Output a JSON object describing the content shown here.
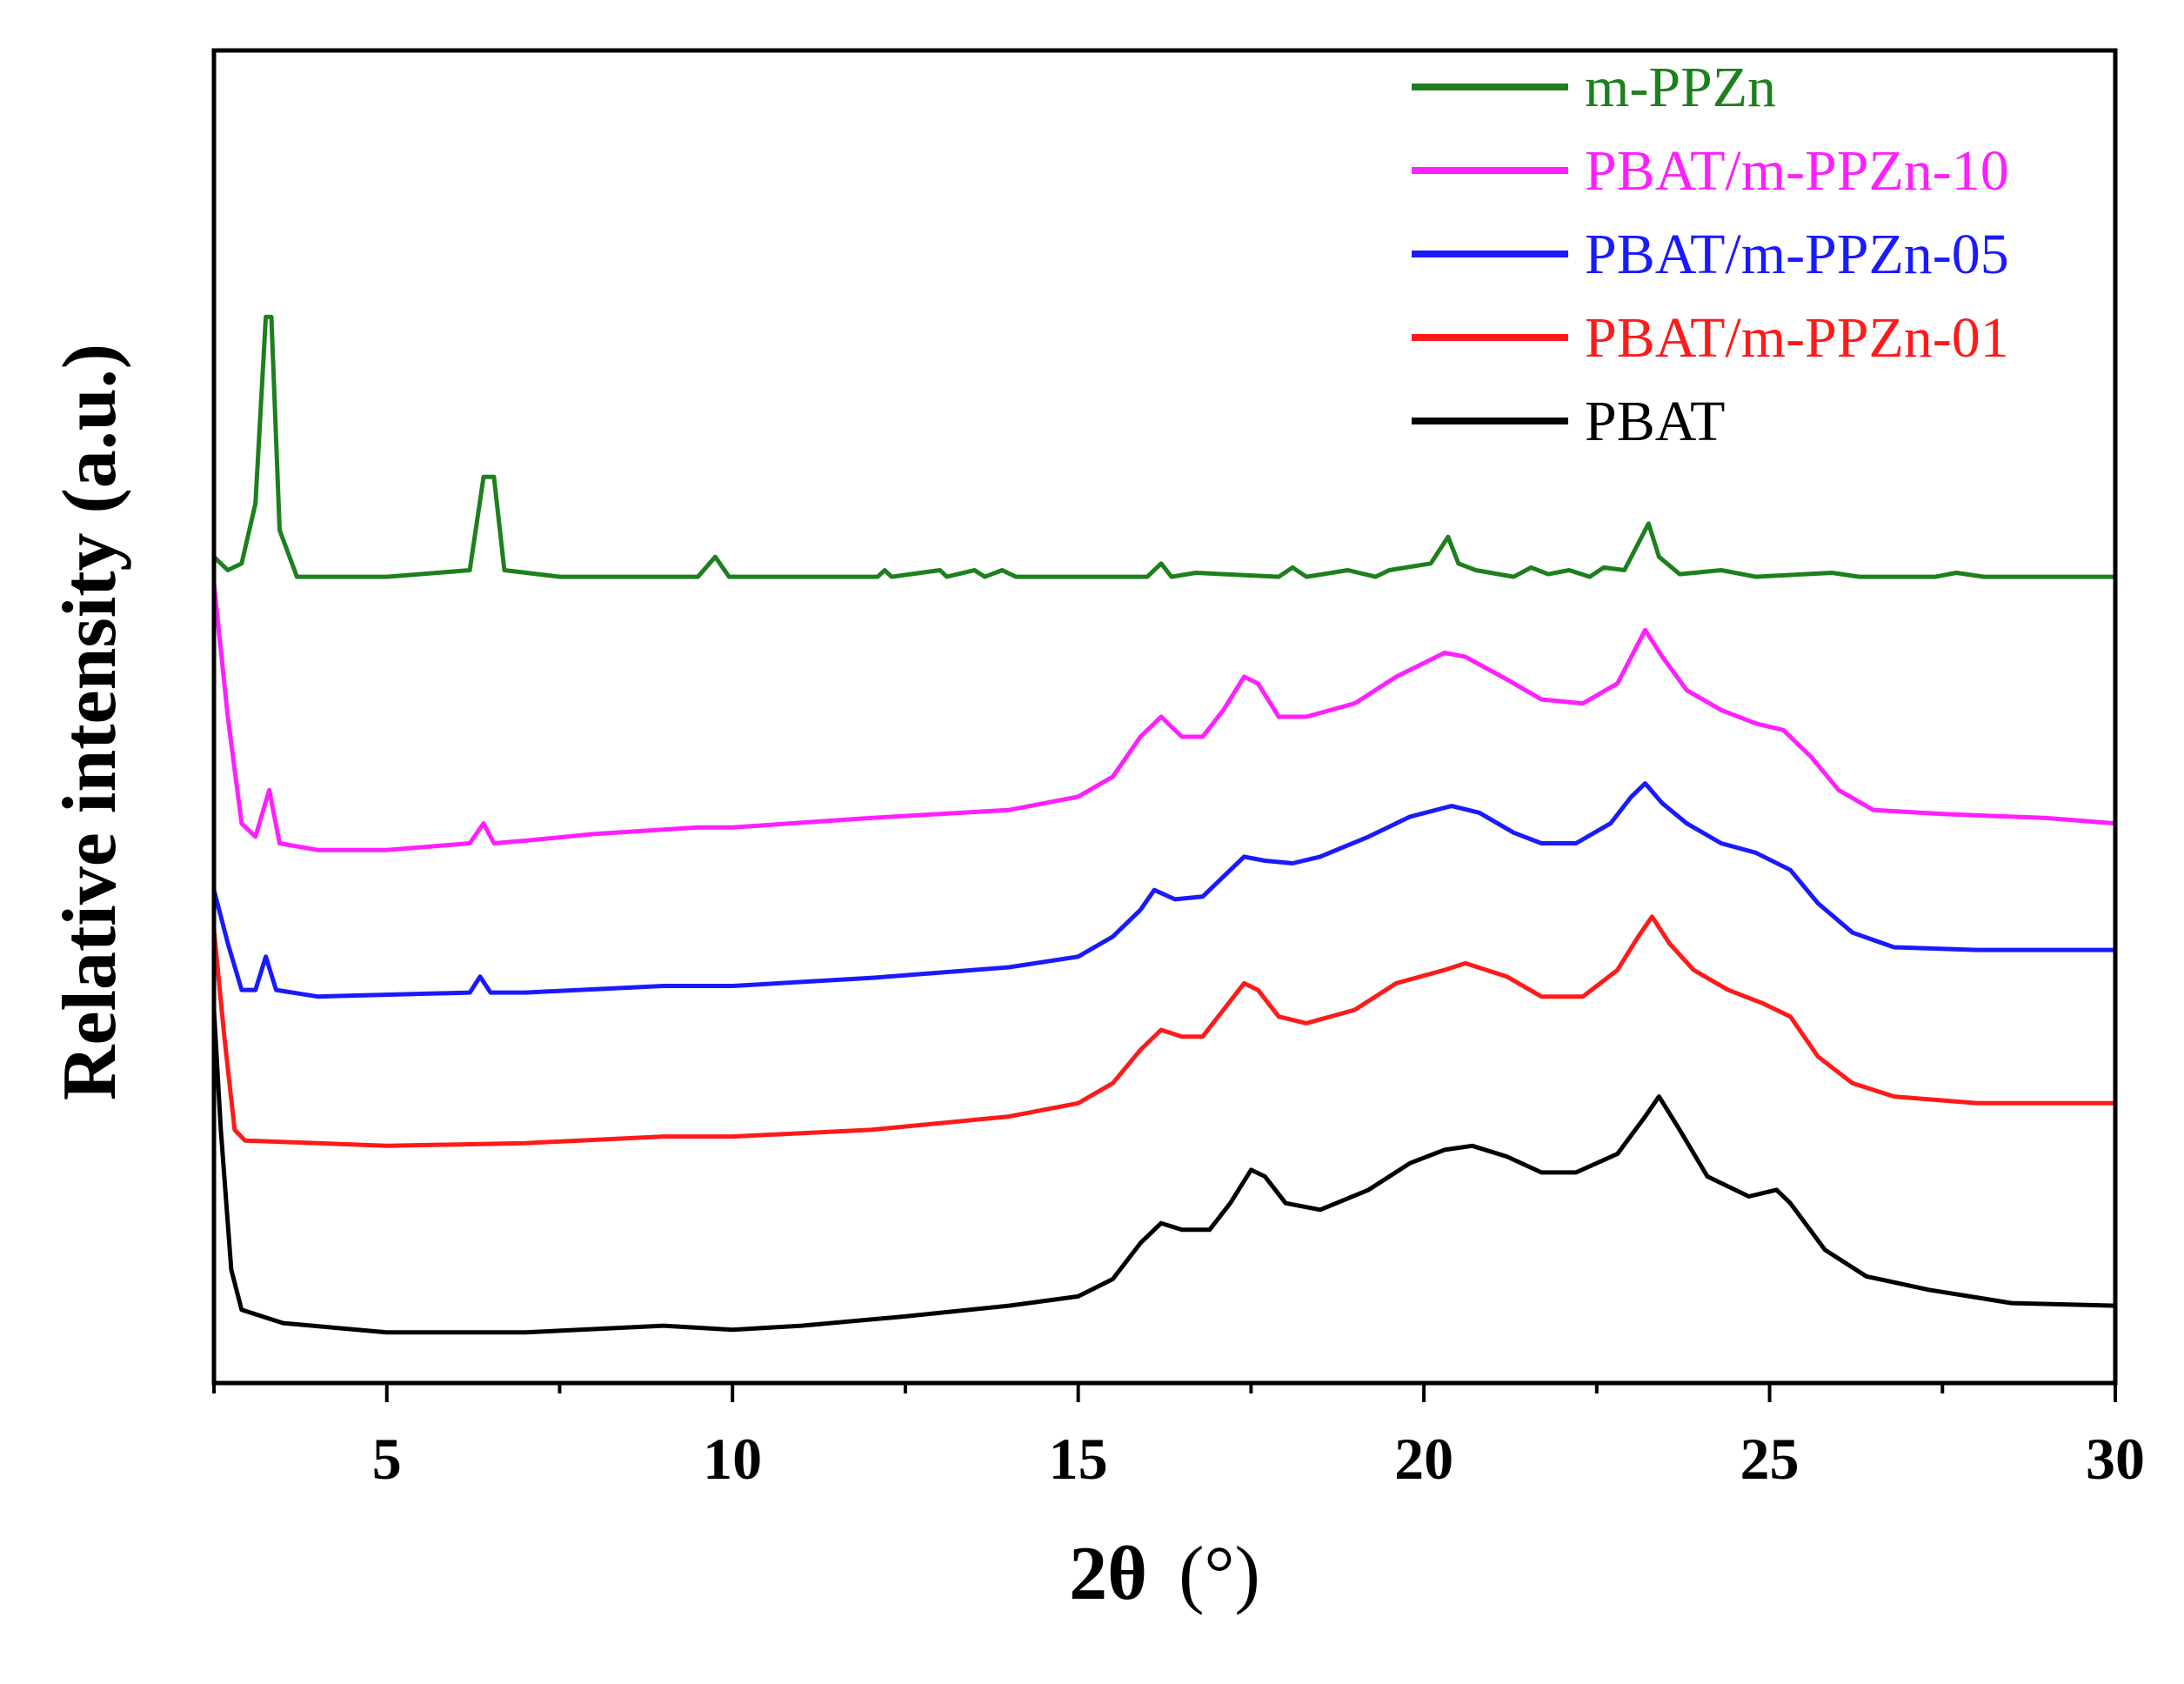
{
  "chart_data": {
    "type": "line",
    "title": "",
    "xlabel_main": "2θ",
    "xlabel_unit": "(°)",
    "ylabel": "Relative intensity (a.u.)",
    "xlim": [
      2.5,
      30
    ],
    "ylim": [
      0,
      10
    ],
    "x_major_ticks": [
      5,
      10,
      15,
      20,
      25,
      30
    ],
    "x_minor_ticks": [
      2.5,
      7.5,
      12.5,
      17.5,
      22.5,
      27.5
    ],
    "y_ticks_shown": false,
    "grid": false,
    "legend_position": "top-right",
    "series": [
      {
        "name": "m-PPZn",
        "color": "#1e7f1e",
        "points": [
          [
            2.5,
            6.2
          ],
          [
            2.7,
            6.1
          ],
          [
            2.9,
            6.15
          ],
          [
            3.1,
            6.6
          ],
          [
            3.25,
            8.0
          ],
          [
            3.33,
            8.0
          ],
          [
            3.45,
            6.4
          ],
          [
            3.7,
            6.05
          ],
          [
            5,
            6.05
          ],
          [
            6.2,
            6.1
          ],
          [
            6.4,
            6.8
          ],
          [
            6.55,
            6.8
          ],
          [
            6.7,
            6.1
          ],
          [
            7.5,
            6.05
          ],
          [
            9.5,
            6.05
          ],
          [
            9.75,
            6.2
          ],
          [
            9.95,
            6.05
          ],
          [
            12.1,
            6.05
          ],
          [
            12.2,
            6.1
          ],
          [
            12.3,
            6.05
          ],
          [
            13,
            6.1
          ],
          [
            13.1,
            6.05
          ],
          [
            13.5,
            6.1
          ],
          [
            13.65,
            6.05
          ],
          [
            13.9,
            6.1
          ],
          [
            14.1,
            6.05
          ],
          [
            16.0,
            6.05
          ],
          [
            16.2,
            6.15
          ],
          [
            16.35,
            6.05
          ],
          [
            16.7,
            6.08
          ],
          [
            17.9,
            6.05
          ],
          [
            18.1,
            6.12
          ],
          [
            18.3,
            6.05
          ],
          [
            18.9,
            6.1
          ],
          [
            19.3,
            6.05
          ],
          [
            19.5,
            6.1
          ],
          [
            20.1,
            6.15
          ],
          [
            20.35,
            6.35
          ],
          [
            20.5,
            6.15
          ],
          [
            20.75,
            6.1
          ],
          [
            21.3,
            6.05
          ],
          [
            21.55,
            6.12
          ],
          [
            21.8,
            6.07
          ],
          [
            22.1,
            6.1
          ],
          [
            22.4,
            6.05
          ],
          [
            22.6,
            6.12
          ],
          [
            22.9,
            6.1
          ],
          [
            23.1,
            6.3
          ],
          [
            23.25,
            6.45
          ],
          [
            23.4,
            6.2
          ],
          [
            23.7,
            6.07
          ],
          [
            24.3,
            6.1
          ],
          [
            24.8,
            6.05
          ],
          [
            25.9,
            6.08
          ],
          [
            26.3,
            6.05
          ],
          [
            27.4,
            6.05
          ],
          [
            27.7,
            6.08
          ],
          [
            28.1,
            6.05
          ],
          [
            30,
            6.05
          ]
        ]
      },
      {
        "name": "PBAT/m-PPZn-10",
        "color": "#ff1fff",
        "points": [
          [
            2.5,
            6.0
          ],
          [
            2.7,
            5.0
          ],
          [
            2.9,
            4.2
          ],
          [
            3.1,
            4.1
          ],
          [
            3.3,
            4.45
          ],
          [
            3.45,
            4.05
          ],
          [
            4,
            4.0
          ],
          [
            5,
            4.0
          ],
          [
            6.2,
            4.05
          ],
          [
            6.4,
            4.2
          ],
          [
            6.55,
            4.05
          ],
          [
            7,
            4.07
          ],
          [
            8,
            4.12
          ],
          [
            9.5,
            4.17
          ],
          [
            10,
            4.17
          ],
          [
            12,
            4.24
          ],
          [
            14,
            4.3
          ],
          [
            15,
            4.4
          ],
          [
            15.5,
            4.55
          ],
          [
            15.9,
            4.85
          ],
          [
            16.2,
            5.0
          ],
          [
            16.5,
            4.85
          ],
          [
            16.8,
            4.85
          ],
          [
            17.1,
            5.05
          ],
          [
            17.4,
            5.3
          ],
          [
            17.6,
            5.25
          ],
          [
            17.9,
            5.0
          ],
          [
            18.3,
            5.0
          ],
          [
            19,
            5.1
          ],
          [
            19.6,
            5.3
          ],
          [
            20.3,
            5.48
          ],
          [
            20.6,
            5.45
          ],
          [
            21.2,
            5.28
          ],
          [
            21.7,
            5.13
          ],
          [
            22.3,
            5.1
          ],
          [
            22.8,
            5.25
          ],
          [
            23.05,
            5.5
          ],
          [
            23.2,
            5.65
          ],
          [
            23.45,
            5.45
          ],
          [
            23.8,
            5.2
          ],
          [
            24.3,
            5.05
          ],
          [
            24.8,
            4.95
          ],
          [
            25.2,
            4.9
          ],
          [
            25.6,
            4.7
          ],
          [
            26.0,
            4.45
          ],
          [
            26.5,
            4.3
          ],
          [
            27.5,
            4.27
          ],
          [
            29,
            4.24
          ],
          [
            30,
            4.2
          ]
        ]
      },
      {
        "name": "PBAT/m-PPZn-05",
        "color": "#1a1aff",
        "points": [
          [
            2.5,
            3.7
          ],
          [
            2.7,
            3.3
          ],
          [
            2.9,
            2.95
          ],
          [
            3.1,
            2.95
          ],
          [
            3.25,
            3.2
          ],
          [
            3.4,
            2.95
          ],
          [
            4,
            2.9
          ],
          [
            6.2,
            2.93
          ],
          [
            6.35,
            3.05
          ],
          [
            6.5,
            2.93
          ],
          [
            7,
            2.93
          ],
          [
            9,
            2.98
          ],
          [
            10,
            2.98
          ],
          [
            12,
            3.04
          ],
          [
            14,
            3.12
          ],
          [
            15,
            3.2
          ],
          [
            15.5,
            3.35
          ],
          [
            15.9,
            3.55
          ],
          [
            16.1,
            3.7
          ],
          [
            16.4,
            3.63
          ],
          [
            16.8,
            3.65
          ],
          [
            17.1,
            3.8
          ],
          [
            17.4,
            3.95
          ],
          [
            17.7,
            3.92
          ],
          [
            18.1,
            3.9
          ],
          [
            18.5,
            3.95
          ],
          [
            19.2,
            4.1
          ],
          [
            19.8,
            4.25
          ],
          [
            20.4,
            4.33
          ],
          [
            20.8,
            4.28
          ],
          [
            21.3,
            4.13
          ],
          [
            21.7,
            4.05
          ],
          [
            22.2,
            4.05
          ],
          [
            22.7,
            4.2
          ],
          [
            23.0,
            4.4
          ],
          [
            23.2,
            4.5
          ],
          [
            23.45,
            4.35
          ],
          [
            23.8,
            4.2
          ],
          [
            24.3,
            4.05
          ],
          [
            24.8,
            3.98
          ],
          [
            25.3,
            3.85
          ],
          [
            25.7,
            3.6
          ],
          [
            26.2,
            3.38
          ],
          [
            26.8,
            3.27
          ],
          [
            28,
            3.25
          ],
          [
            30,
            3.25
          ]
        ]
      },
      {
        "name": "PBAT/m-PPZn-01",
        "color": "#ff1a1a",
        "points": [
          [
            2.5,
            3.4
          ],
          [
            2.65,
            2.6
          ],
          [
            2.8,
            1.9
          ],
          [
            2.95,
            1.82
          ],
          [
            4,
            1.8
          ],
          [
            5,
            1.78
          ],
          [
            7,
            1.8
          ],
          [
            9,
            1.85
          ],
          [
            10,
            1.85
          ],
          [
            12,
            1.9
          ],
          [
            14,
            2.0
          ],
          [
            15,
            2.1
          ],
          [
            15.5,
            2.25
          ],
          [
            15.9,
            2.5
          ],
          [
            16.2,
            2.65
          ],
          [
            16.5,
            2.6
          ],
          [
            16.8,
            2.6
          ],
          [
            17.1,
            2.8
          ],
          [
            17.4,
            3.0
          ],
          [
            17.6,
            2.95
          ],
          [
            17.9,
            2.75
          ],
          [
            18.3,
            2.7
          ],
          [
            19,
            2.8
          ],
          [
            19.6,
            3.0
          ],
          [
            20.3,
            3.1
          ],
          [
            20.6,
            3.15
          ],
          [
            21.2,
            3.05
          ],
          [
            21.7,
            2.9
          ],
          [
            22.3,
            2.9
          ],
          [
            22.8,
            3.1
          ],
          [
            23.1,
            3.35
          ],
          [
            23.3,
            3.5
          ],
          [
            23.55,
            3.3
          ],
          [
            23.9,
            3.1
          ],
          [
            24.4,
            2.95
          ],
          [
            24.9,
            2.85
          ],
          [
            25.3,
            2.75
          ],
          [
            25.7,
            2.45
          ],
          [
            26.2,
            2.25
          ],
          [
            26.8,
            2.15
          ],
          [
            28,
            2.1
          ],
          [
            30,
            2.1
          ]
        ]
      },
      {
        "name": "PBAT",
        "color": "#000000",
        "points": [
          [
            2.5,
            2.8
          ],
          [
            2.6,
            1.9
          ],
          [
            2.75,
            0.85
          ],
          [
            2.9,
            0.55
          ],
          [
            3.5,
            0.45
          ],
          [
            5,
            0.38
          ],
          [
            7,
            0.38
          ],
          [
            9,
            0.43
          ],
          [
            10,
            0.4
          ],
          [
            11,
            0.43
          ],
          [
            12.5,
            0.5
          ],
          [
            14,
            0.58
          ],
          [
            15,
            0.65
          ],
          [
            15.5,
            0.78
          ],
          [
            15.9,
            1.05
          ],
          [
            16.2,
            1.2
          ],
          [
            16.5,
            1.15
          ],
          [
            16.9,
            1.15
          ],
          [
            17.2,
            1.35
          ],
          [
            17.5,
            1.6
          ],
          [
            17.7,
            1.55
          ],
          [
            18.0,
            1.35
          ],
          [
            18.5,
            1.3
          ],
          [
            19.2,
            1.45
          ],
          [
            19.8,
            1.65
          ],
          [
            20.3,
            1.75
          ],
          [
            20.7,
            1.78
          ],
          [
            21.2,
            1.7
          ],
          [
            21.7,
            1.58
          ],
          [
            22.2,
            1.58
          ],
          [
            22.8,
            1.72
          ],
          [
            23.2,
            2.0
          ],
          [
            23.4,
            2.15
          ],
          [
            23.7,
            1.9
          ],
          [
            24.1,
            1.55
          ],
          [
            24.7,
            1.4
          ],
          [
            25.1,
            1.45
          ],
          [
            25.3,
            1.35
          ],
          [
            25.8,
            1.0
          ],
          [
            26.4,
            0.8
          ],
          [
            27.3,
            0.7
          ],
          [
            28.5,
            0.6
          ],
          [
            30,
            0.58
          ]
        ]
      }
    ]
  }
}
